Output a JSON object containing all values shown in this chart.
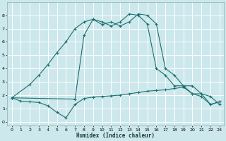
{
  "xlabel": "Humidex (Indice chaleur)",
  "bg_color": "#cce8ec",
  "grid_color": "#ffffff",
  "line_color": "#1a7070",
  "xlim": [
    -0.5,
    23.5
  ],
  "ylim": [
    -0.3,
    9.0
  ],
  "xticks": [
    0,
    1,
    2,
    3,
    4,
    5,
    6,
    7,
    8,
    9,
    10,
    11,
    12,
    13,
    14,
    15,
    16,
    17,
    18,
    19,
    20,
    21,
    22,
    23
  ],
  "yticks": [
    0,
    1,
    2,
    3,
    4,
    5,
    6,
    7,
    8
  ],
  "line1_x": [
    0,
    1,
    2,
    3,
    4,
    5,
    6,
    7,
    8,
    9,
    10,
    11,
    12,
    13,
    14,
    15,
    16,
    17,
    18,
    19,
    20,
    21,
    22,
    23
  ],
  "line1_y": [
    1.8,
    1.55,
    1.5,
    1.45,
    1.2,
    0.7,
    0.3,
    1.3,
    1.75,
    1.85,
    1.9,
    1.95,
    2.0,
    2.1,
    2.2,
    2.3,
    2.35,
    2.4,
    2.5,
    2.6,
    2.1,
    2.1,
    1.3,
    1.5
  ],
  "line2_x": [
    0,
    2,
    3,
    4,
    5,
    6,
    7,
    8,
    9,
    10,
    11,
    12,
    13,
    14,
    15,
    16,
    17,
    18,
    19,
    20,
    21,
    22,
    23
  ],
  "line2_y": [
    1.8,
    2.8,
    3.5,
    4.3,
    5.2,
    6.0,
    7.0,
    7.5,
    7.7,
    7.3,
    7.5,
    7.2,
    7.5,
    8.1,
    8.0,
    7.35,
    4.0,
    3.5,
    2.7,
    2.7,
    2.1,
    1.9,
    1.3
  ],
  "line3_x": [
    0,
    7,
    8,
    9,
    10,
    11,
    12,
    13,
    14,
    15,
    16,
    17,
    18,
    19,
    20,
    21,
    22,
    23
  ],
  "line3_y": [
    1.8,
    1.7,
    6.5,
    7.7,
    7.5,
    7.2,
    7.5,
    8.1,
    8.0,
    7.35,
    4.0,
    3.5,
    2.7,
    2.7,
    2.1,
    1.9,
    1.3,
    1.5
  ]
}
